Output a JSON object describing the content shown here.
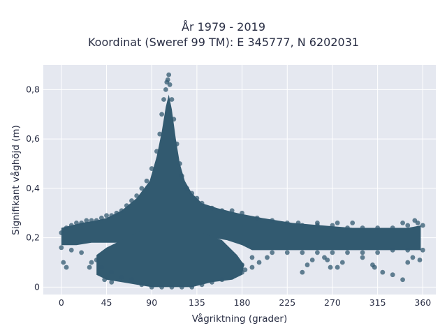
{
  "chart_data": {
    "type": "scatter",
    "title_lines": [
      "År 1979 - 2019",
      "Koordinat (Sweref 99 TM): E 345777, N 6202031"
    ],
    "xlabel": "Vågriktning (grader)",
    "ylabel": "Signifikant våghöjd (m)",
    "xlim": [
      -18,
      373
    ],
    "ylim": [
      -0.03,
      0.9
    ],
    "xticks": [
      0,
      45,
      90,
      135,
      180,
      225,
      270,
      315,
      360
    ],
    "xtick_labels": [
      "0",
      "45",
      "90",
      "135",
      "180",
      "225",
      "270",
      "315",
      "360"
    ],
    "yticks": [
      0,
      0.2,
      0.4,
      0.6,
      0.8
    ],
    "ytick_labels": [
      "0",
      "0,2",
      "0,4",
      "0,6",
      "0,8"
    ],
    "grid": true,
    "colors": {
      "marker": "#325a70",
      "plot_bg": "#e5e8f0",
      "grid": "#ffffff"
    },
    "series": [
      {
        "points": [
          [
            0,
            0.22
          ],
          [
            5,
            0.24
          ],
          [
            10,
            0.25
          ],
          [
            15,
            0.26
          ],
          [
            20,
            0.26
          ],
          [
            25,
            0.27
          ],
          [
            30,
            0.27
          ],
          [
            35,
            0.27
          ],
          [
            40,
            0.28
          ],
          [
            45,
            0.29
          ],
          [
            50,
            0.29
          ],
          [
            55,
            0.3
          ],
          [
            60,
            0.31
          ],
          [
            65,
            0.33
          ],
          [
            70,
            0.35
          ],
          [
            75,
            0.37
          ],
          [
            80,
            0.4
          ],
          [
            85,
            0.43
          ],
          [
            90,
            0.48
          ],
          [
            95,
            0.55
          ],
          [
            98,
            0.62
          ],
          [
            100,
            0.7
          ],
          [
            102,
            0.76
          ],
          [
            104,
            0.8
          ],
          [
            105,
            0.83
          ],
          [
            106,
            0.84
          ],
          [
            107,
            0.86
          ],
          [
            108,
            0.82
          ],
          [
            110,
            0.76
          ],
          [
            112,
            0.68
          ],
          [
            115,
            0.58
          ],
          [
            118,
            0.5
          ],
          [
            120,
            0.45
          ],
          [
            125,
            0.4
          ],
          [
            130,
            0.38
          ],
          [
            135,
            0.36
          ],
          [
            140,
            0.34
          ],
          [
            150,
            0.32
          ],
          [
            160,
            0.31
          ],
          [
            170,
            0.31
          ],
          [
            180,
            0.3
          ],
          [
            195,
            0.28
          ],
          [
            210,
            0.27
          ],
          [
            225,
            0.26
          ],
          [
            240,
            0.25
          ],
          [
            255,
            0.25
          ],
          [
            270,
            0.25
          ],
          [
            285,
            0.24
          ],
          [
            300,
            0.24
          ],
          [
            315,
            0.24
          ],
          [
            330,
            0.24
          ],
          [
            345,
            0.25
          ],
          [
            355,
            0.26
          ],
          [
            360,
            0.25
          ],
          [
            0,
            0.16
          ],
          [
            10,
            0.15
          ],
          [
            20,
            0.14
          ],
          [
            30,
            0.1
          ],
          [
            40,
            0.08
          ],
          [
            50,
            0.06
          ],
          [
            60,
            0.04
          ],
          [
            70,
            0.03
          ],
          [
            80,
            0.01
          ],
          [
            90,
            0.0
          ],
          [
            100,
            0.0
          ],
          [
            110,
            0.0
          ],
          [
            120,
            0.0
          ],
          [
            130,
            0.0
          ],
          [
            140,
            0.01
          ],
          [
            150,
            0.02
          ],
          [
            160,
            0.03
          ],
          [
            170,
            0.04
          ],
          [
            180,
            0.06
          ],
          [
            190,
            0.12
          ],
          [
            210,
            0.14
          ],
          [
            225,
            0.14
          ],
          [
            240,
            0.14
          ],
          [
            255,
            0.14
          ],
          [
            270,
            0.14
          ],
          [
            285,
            0.14
          ],
          [
            300,
            0.14
          ],
          [
            315,
            0.14
          ],
          [
            330,
            0.15
          ],
          [
            345,
            0.15
          ],
          [
            360,
            0.15
          ],
          [
            2,
            0.1
          ],
          [
            5,
            0.08
          ],
          [
            28,
            0.08
          ],
          [
            35,
            0.11
          ],
          [
            43,
            0.03
          ],
          [
            50,
            0.02
          ],
          [
            180,
            0.09
          ],
          [
            183,
            0.07
          ],
          [
            190,
            0.08
          ],
          [
            197,
            0.1
          ],
          [
            205,
            0.12
          ],
          [
            240,
            0.06
          ],
          [
            245,
            0.09
          ],
          [
            250,
            0.11
          ],
          [
            262,
            0.12
          ],
          [
            265,
            0.11
          ],
          [
            268,
            0.08
          ],
          [
            275,
            0.08
          ],
          [
            280,
            0.1
          ],
          [
            300,
            0.12
          ],
          [
            310,
            0.09
          ],
          [
            312,
            0.08
          ],
          [
            320,
            0.06
          ],
          [
            330,
            0.05
          ],
          [
            340,
            0.03
          ],
          [
            345,
            0.1
          ],
          [
            350,
            0.12
          ],
          [
            357,
            0.11
          ],
          [
            236,
            0.26
          ],
          [
            255,
            0.26
          ],
          [
            275,
            0.26
          ],
          [
            290,
            0.26
          ],
          [
            340,
            0.26
          ],
          [
            352,
            0.27
          ]
        ]
      }
    ]
  }
}
